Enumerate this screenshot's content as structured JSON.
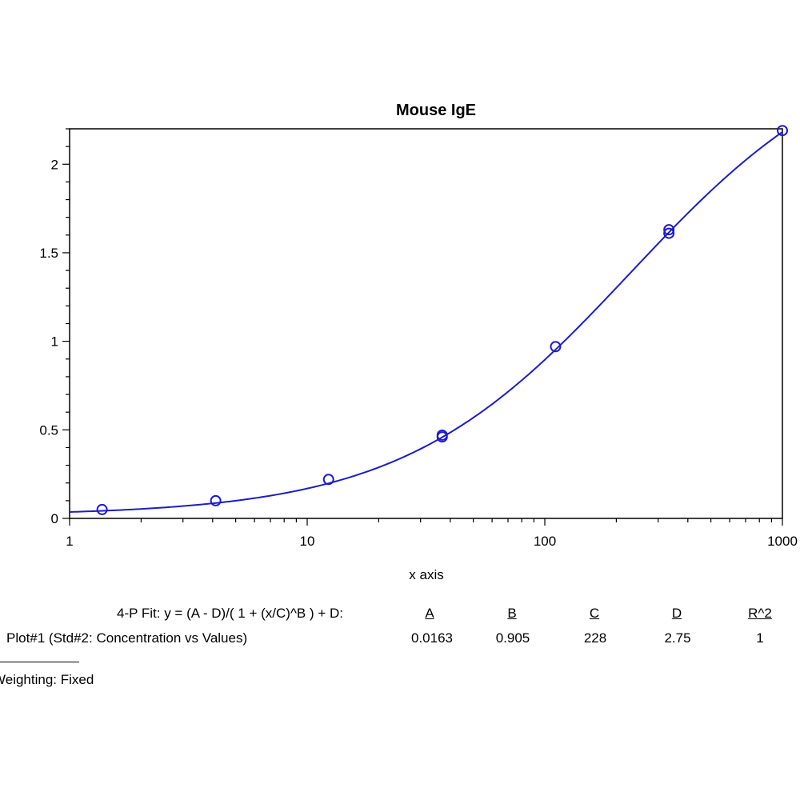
{
  "chart_data": {
    "type": "scatter",
    "title": "Mouse IgE",
    "xlabel": "x axis",
    "ylabel": "",
    "xscale": "log",
    "xlim": [
      1,
      1000
    ],
    "ylim": [
      0,
      2.2
    ],
    "xticks": [
      1,
      10,
      100,
      1000
    ],
    "xtick_labels": [
      "1",
      "10",
      "100",
      "1000"
    ],
    "yticks": [
      0,
      0.5,
      1,
      1.5,
      2
    ],
    "ytick_labels": [
      "0",
      "0.5",
      "1",
      "1.5",
      "2"
    ],
    "grid": false,
    "series": [
      {
        "type": "scatter",
        "marker": "circle",
        "color": "#1c1cc8",
        "points": [
          {
            "x": 1.37,
            "y": 0.05
          },
          {
            "x": 4.12,
            "y": 0.1
          },
          {
            "x": 12.3,
            "y": 0.22
          },
          {
            "x": 37.0,
            "y": 0.46
          },
          {
            "x": 37.0,
            "y": 0.47
          },
          {
            "x": 111,
            "y": 0.97
          },
          {
            "x": 333,
            "y": 1.61
          },
          {
            "x": 333,
            "y": 1.63
          },
          {
            "x": 1000,
            "y": 2.19
          }
        ]
      },
      {
        "type": "line",
        "color": "#1c1cc8",
        "fit": "4-parameter logistic",
        "params": {
          "A": 0.0163,
          "B": 0.905,
          "C": 228,
          "D": 2.75
        }
      }
    ]
  },
  "fit_summary": {
    "formula": "4-P Fit: y = (A - D)/( 1 + (x/C)^B ) + D:",
    "headers": [
      "A",
      "B",
      "C",
      "D",
      "R^2"
    ],
    "row_label": "Plot#1 (Std#2: Concentration vs Values)",
    "values": [
      "0.0163",
      "0.905",
      "228",
      "2.75",
      "1"
    ],
    "weighting": "Weighting: Fixed"
  }
}
